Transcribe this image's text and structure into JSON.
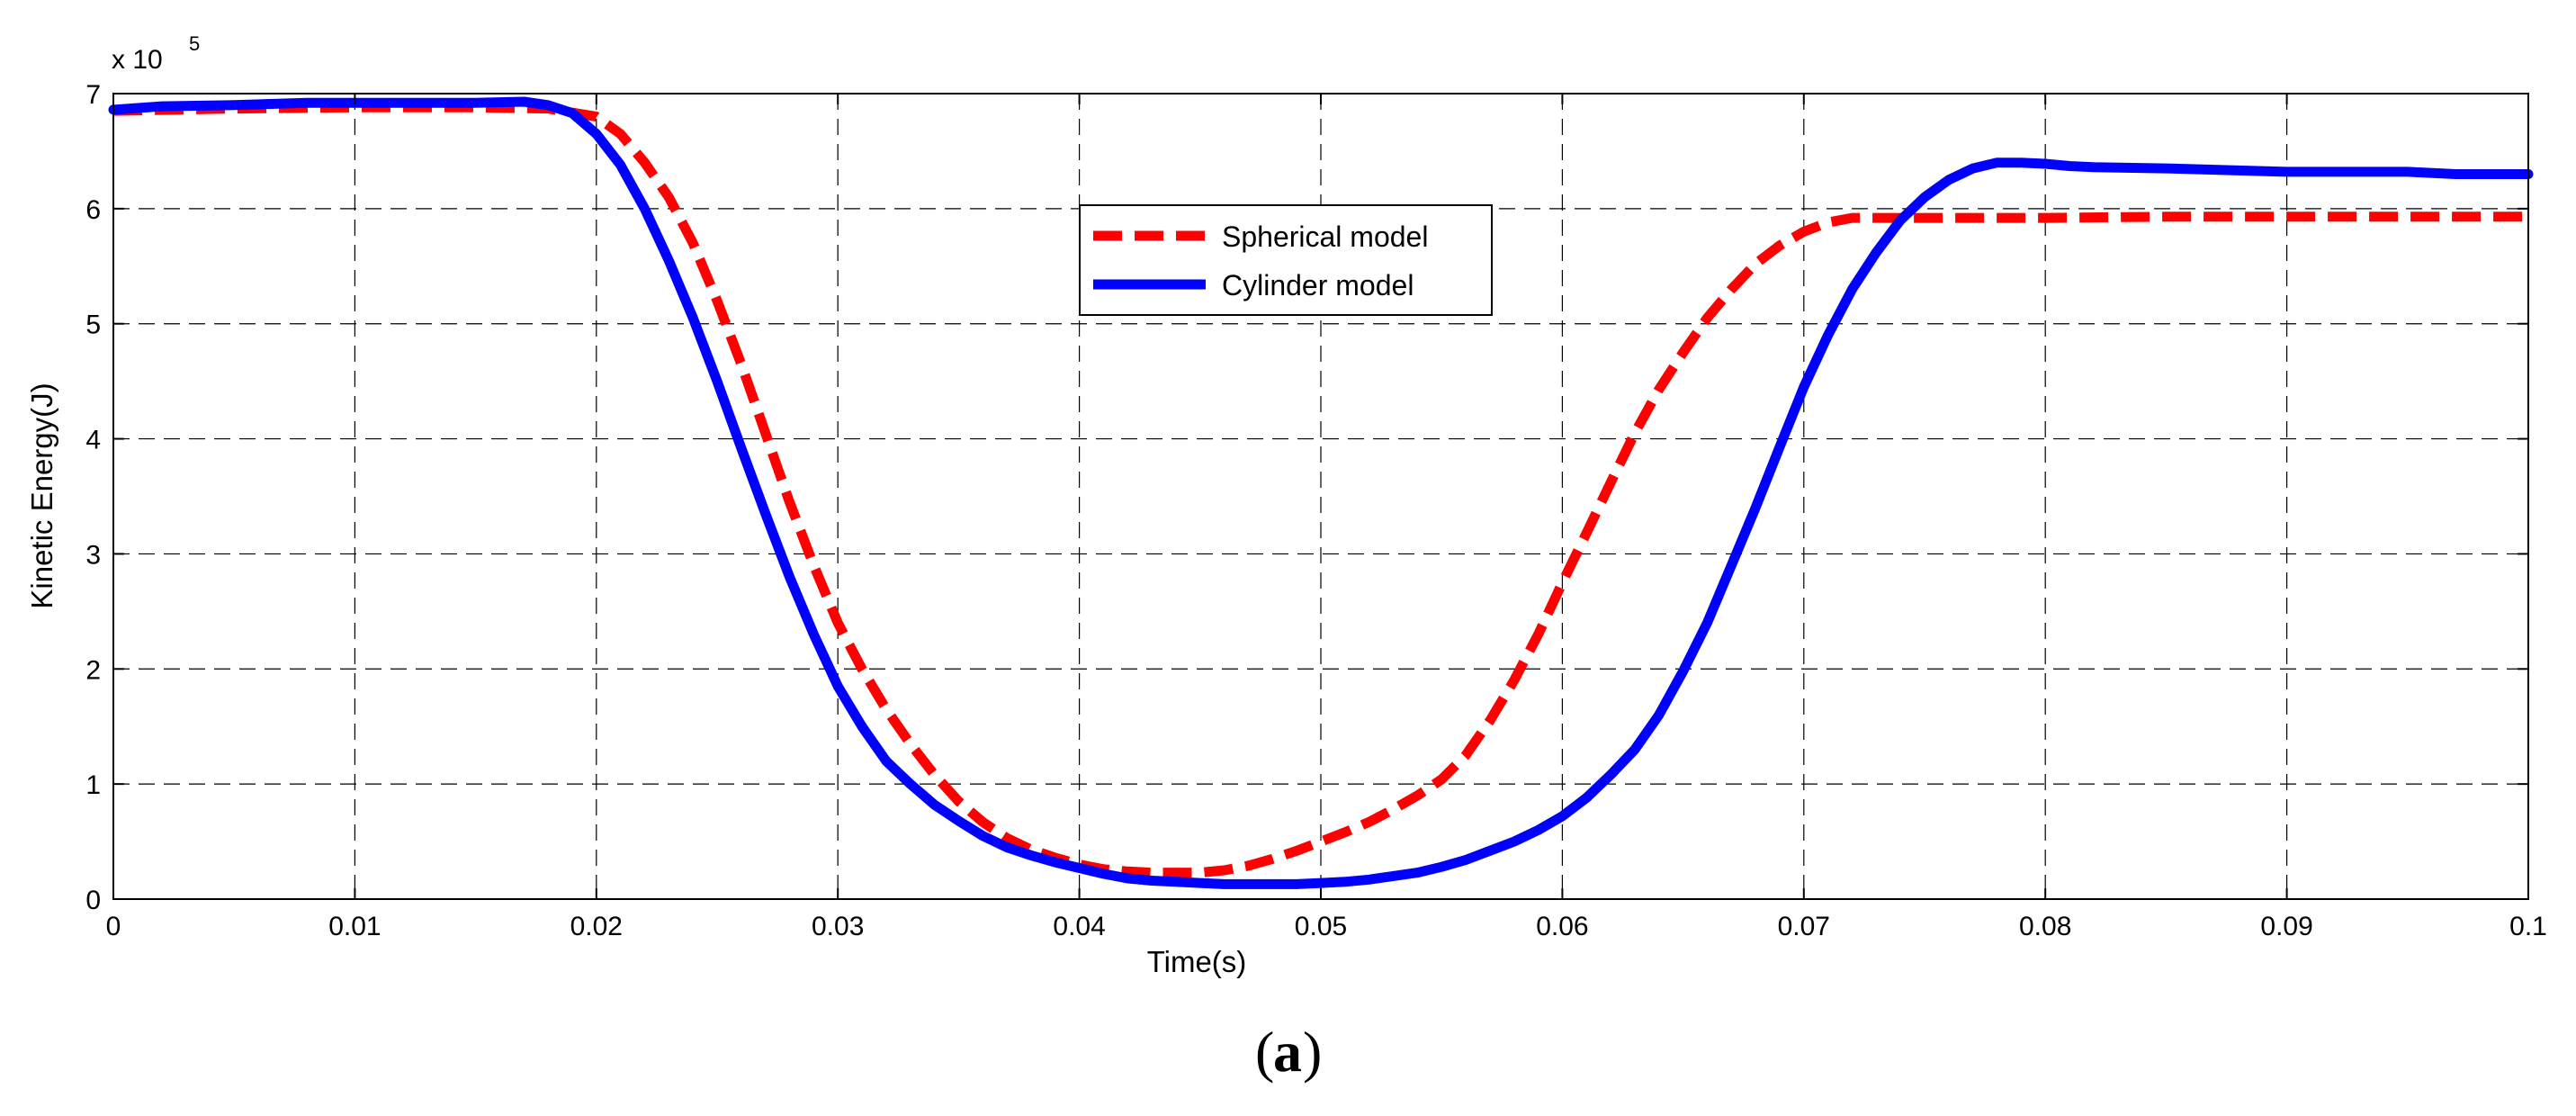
{
  "chart_data": {
    "type": "line",
    "title": "",
    "xlabel": "Time(s)",
    "ylabel": "Kinetic Energy(J)",
    "xlim": [
      0,
      0.1
    ],
    "ylim": [
      0,
      700000
    ],
    "y_exponent_label": "x 10",
    "y_exponent_power": "5",
    "grid": true,
    "legend_position": "upper-center",
    "x_ticks": [
      0,
      0.01,
      0.02,
      0.03,
      0.04,
      0.05,
      0.06,
      0.07,
      0.08,
      0.09,
      0.1
    ],
    "x_tick_labels": [
      "0",
      "0.01",
      "0.02",
      "0.03",
      "0.04",
      "0.05",
      "0.06",
      "0.07",
      "0.08",
      "0.09",
      "0.1"
    ],
    "y_ticks": [
      0,
      100000,
      200000,
      300000,
      400000,
      500000,
      600000,
      700000
    ],
    "y_tick_labels": [
      "0",
      "1",
      "2",
      "3",
      "4",
      "5",
      "6",
      "7"
    ],
    "series": [
      {
        "name": "Spherical model",
        "color": "#ff0000",
        "style": "dashed",
        "x": [
          0,
          0.005,
          0.01,
          0.015,
          0.018,
          0.02,
          0.021,
          0.022,
          0.023,
          0.024,
          0.025,
          0.026,
          0.027,
          0.028,
          0.029,
          0.03,
          0.031,
          0.032,
          0.033,
          0.034,
          0.035,
          0.036,
          0.037,
          0.038,
          0.039,
          0.04,
          0.041,
          0.042,
          0.043,
          0.044,
          0.045,
          0.046,
          0.047,
          0.048,
          0.049,
          0.05,
          0.051,
          0.052,
          0.053,
          0.054,
          0.055,
          0.056,
          0.057,
          0.058,
          0.059,
          0.06,
          0.061,
          0.062,
          0.063,
          0.064,
          0.065,
          0.066,
          0.067,
          0.068,
          0.069,
          0.07,
          0.071,
          0.072,
          0.073,
          0.074,
          0.075,
          0.08,
          0.085,
          0.09,
          0.095,
          0.1
        ],
        "y": [
          685000,
          687000,
          688000,
          688000,
          687000,
          680000,
          665000,
          640000,
          610000,
          570000,
          520000,
          465000,
          405000,
          345000,
          290000,
          240000,
          200000,
          165000,
          135000,
          108000,
          85000,
          67000,
          53000,
          43000,
          36000,
          30000,
          26000,
          24000,
          23000,
          23000,
          23000,
          25000,
          29000,
          35000,
          42000,
          50000,
          58000,
          67000,
          78000,
          90000,
          104000,
          125000,
          155000,
          190000,
          230000,
          275000,
          318000,
          362000,
          405000,
          443000,
          475000,
          505000,
          530000,
          552000,
          568000,
          580000,
          588000,
          592000,
          592000,
          592000,
          592000,
          592000,
          593000,
          593000,
          593000,
          593000
        ]
      },
      {
        "name": "Cylinder model",
        "color": "#0000ff",
        "style": "solid",
        "x": [
          0,
          0.002,
          0.005,
          0.008,
          0.01,
          0.015,
          0.017,
          0.018,
          0.019,
          0.02,
          0.021,
          0.022,
          0.023,
          0.024,
          0.025,
          0.026,
          0.027,
          0.028,
          0.029,
          0.03,
          0.031,
          0.032,
          0.033,
          0.034,
          0.035,
          0.036,
          0.037,
          0.038,
          0.039,
          0.04,
          0.041,
          0.042,
          0.043,
          0.044,
          0.045,
          0.046,
          0.047,
          0.048,
          0.049,
          0.05,
          0.051,
          0.052,
          0.053,
          0.054,
          0.055,
          0.056,
          0.057,
          0.058,
          0.059,
          0.06,
          0.061,
          0.062,
          0.063,
          0.064,
          0.065,
          0.066,
          0.067,
          0.068,
          0.069,
          0.07,
          0.071,
          0.072,
          0.073,
          0.074,
          0.075,
          0.076,
          0.077,
          0.078,
          0.079,
          0.08,
          0.081,
          0.082,
          0.085,
          0.09,
          0.095,
          0.097,
          0.1
        ],
        "y": [
          686000,
          689000,
          690000,
          692000,
          692000,
          692000,
          693000,
          690000,
          683000,
          665000,
          638000,
          600000,
          555000,
          505000,
          450000,
          392000,
          335000,
          280000,
          230000,
          185000,
          150000,
          120000,
          100000,
          82000,
          68000,
          55000,
          45000,
          38000,
          32000,
          27000,
          22000,
          18000,
          16000,
          15000,
          14000,
          13000,
          13000,
          13000,
          13000,
          14000,
          15000,
          17000,
          20000,
          23000,
          28000,
          34000,
          42000,
          50000,
          60000,
          72000,
          88000,
          108000,
          130000,
          160000,
          198000,
          240000,
          290000,
          340000,
          393000,
          445000,
          490000,
          530000,
          562000,
          590000,
          610000,
          625000,
          635000,
          640000,
          640000,
          639000,
          637000,
          636000,
          635000,
          632000,
          632000,
          630000,
          630000
        ]
      }
    ]
  },
  "caption": {
    "open": "(",
    "letter": "a",
    "close": ")"
  }
}
